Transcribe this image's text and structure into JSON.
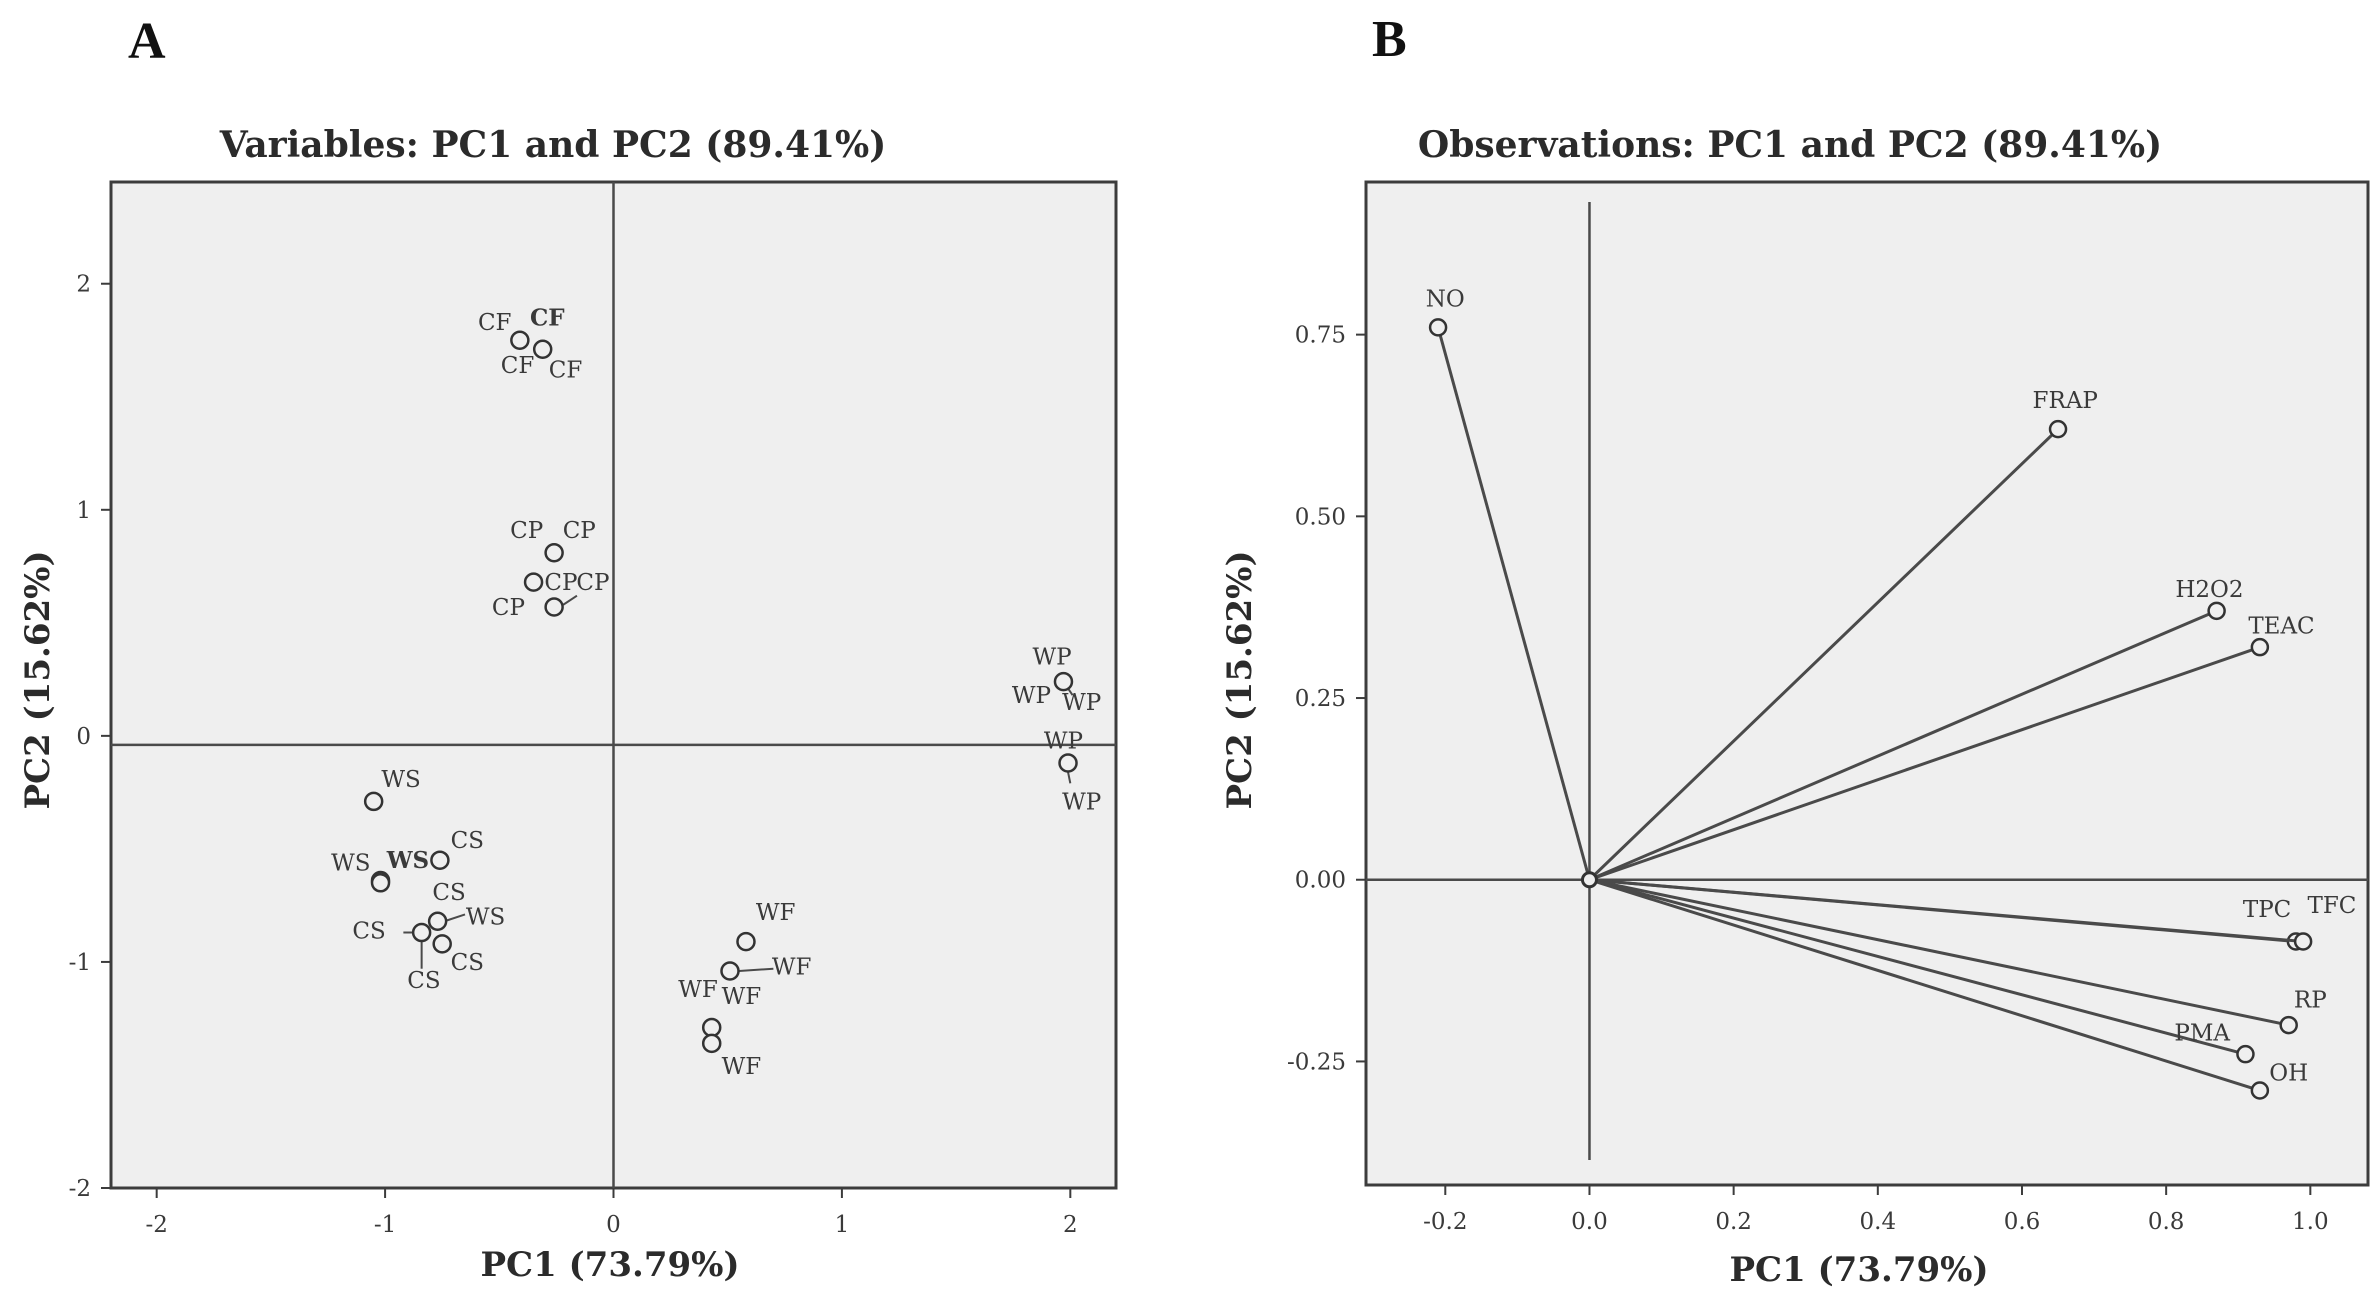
{
  "panels": {
    "a": {
      "letter": "A"
    },
    "b": {
      "letter": "B"
    }
  },
  "colors": {
    "plot_bg": "#efefef",
    "line": "#4a4a4a",
    "text": "#3a3a3a"
  },
  "chart_data": [
    {
      "type": "scatter",
      "title": "Variables: PC1 and PC2 (89.41%)",
      "xlabel": "PC1 (73.79%)",
      "ylabel": "PC2 (15.62%)",
      "xlim": [
        -2.2,
        2.2
      ],
      "ylim": [
        -2,
        2.45
      ],
      "xticks": [
        -2,
        -1,
        0,
        1,
        2
      ],
      "xtick_labels": [
        "-2",
        "-1",
        "0",
        "1",
        "2"
      ],
      "yticks": [
        -2,
        -1,
        0,
        1,
        2
      ],
      "ytick_labels": [
        "-2",
        "-1",
        "0",
        "1",
        "2"
      ],
      "reference_lines": {
        "x": 0,
        "y": -0.04
      },
      "points": [
        {
          "x": -0.41,
          "y": 1.75
        },
        {
          "x": -0.31,
          "y": 1.71
        },
        {
          "x": -0.26,
          "y": 0.81
        },
        {
          "x": -0.35,
          "y": 0.68
        },
        {
          "x": -0.26,
          "y": 0.57
        },
        {
          "x": 1.97,
          "y": 0.24
        },
        {
          "x": 1.99,
          "y": -0.12
        },
        {
          "x": -1.05,
          "y": -0.29
        },
        {
          "x": -0.76,
          "y": -0.55
        },
        {
          "x": -1.02,
          "y": -0.64
        },
        {
          "x": -1.02,
          "y": -0.65
        },
        {
          "x": -0.77,
          "y": -0.82
        },
        {
          "x": -0.84,
          "y": -0.87
        },
        {
          "x": -0.75,
          "y": -0.92
        },
        {
          "x": 0.58,
          "y": -0.91
        },
        {
          "x": 0.51,
          "y": -1.04
        },
        {
          "x": 0.43,
          "y": -1.29
        },
        {
          "x": 0.43,
          "y": -1.36
        }
      ],
      "labels": [
        {
          "text": "CF",
          "x": -0.52,
          "y": 1.83
        },
        {
          "text": "CF",
          "x": -0.29,
          "y": 1.85,
          "bold": true
        },
        {
          "text": "CF",
          "x": -0.42,
          "y": 1.64
        },
        {
          "text": "CF",
          "x": -0.21,
          "y": 1.62
        },
        {
          "text": "CP",
          "x": -0.38,
          "y": 0.91
        },
        {
          "text": "CP",
          "x": -0.15,
          "y": 0.91
        },
        {
          "text": "CP",
          "x": -0.23,
          "y": 0.68
        },
        {
          "text": "CP",
          "x": -0.09,
          "y": 0.68
        },
        {
          "text": "CP",
          "x": -0.46,
          "y": 0.57
        },
        {
          "text": "WP",
          "x": 1.92,
          "y": 0.35
        },
        {
          "text": "WP",
          "x": 1.83,
          "y": 0.18
        },
        {
          "text": "WP",
          "x": 2.05,
          "y": 0.15
        },
        {
          "text": "WP",
          "x": 1.97,
          "y": -0.02
        },
        {
          "text": "WP",
          "x": 2.05,
          "y": -0.29
        },
        {
          "text": "WS",
          "x": -0.93,
          "y": -0.19
        },
        {
          "text": "CS",
          "x": -0.64,
          "y": -0.46
        },
        {
          "text": "WS",
          "x": -1.15,
          "y": -0.56
        },
        {
          "text": "WS",
          "x": -0.9,
          "y": -0.55,
          "bold": true
        },
        {
          "text": "CS",
          "x": -0.72,
          "y": -0.69
        },
        {
          "text": "WS",
          "x": -0.56,
          "y": -0.8
        },
        {
          "text": "CS",
          "x": -1.07,
          "y": -0.86
        },
        {
          "text": "CS",
          "x": -0.64,
          "y": -1.0
        },
        {
          "text": "CS",
          "x": -0.83,
          "y": -1.08
        },
        {
          "text": "WF",
          "x": 0.71,
          "y": -0.78
        },
        {
          "text": "WF",
          "x": 0.78,
          "y": -1.02
        },
        {
          "text": "WF",
          "x": 0.37,
          "y": -1.12
        },
        {
          "text": "WF",
          "x": 0.56,
          "y": -1.15
        },
        {
          "text": "WF",
          "x": 0.56,
          "y": -1.46
        }
      ],
      "connectors": [
        {
          "from": [
            0.55,
            -1.04
          ],
          "to": [
            0.7,
            -1.03
          ]
        },
        {
          "from": [
            -0.81,
            -0.87
          ],
          "to": [
            -0.92,
            -0.87
          ]
        },
        {
          "from": [
            -0.74,
            -0.82
          ],
          "to": [
            -0.65,
            -0.79
          ]
        },
        {
          "from": [
            -0.84,
            -0.9
          ],
          "to": [
            -0.84,
            -1.03
          ]
        },
        {
          "from": [
            -0.22,
            0.58
          ],
          "to": [
            -0.16,
            0.62
          ]
        },
        {
          "from": [
            1.99,
            -0.16
          ],
          "to": [
            2.0,
            -0.21
          ]
        },
        {
          "from": [
            1.99,
            0.21
          ],
          "to": [
            2.01,
            0.18
          ]
        }
      ]
    },
    {
      "type": "scatter",
      "title": "Observations: PC1 and PC2 (89.41%)",
      "xlabel": "PC1 (73.79%)",
      "ylabel": "PC2 (15.62%)",
      "xlim": [
        -0.31,
        1.08
      ],
      "ylim": [
        -0.42,
        0.96
      ],
      "xticks": [
        -0.2,
        0,
        0.2,
        0.4,
        0.6,
        0.8,
        1.0
      ],
      "xtick_labels": [
        "-0.2",
        "0.0",
        "0.2",
        "0.4",
        "0.6",
        "0.8",
        "1.0"
      ],
      "yticks": [
        -0.25,
        0,
        0.25,
        0.5,
        0.75
      ],
      "ytick_labels": [
        "-0.25",
        "0.00",
        "0.25",
        "0.50",
        "0.75"
      ],
      "reference_lines": {
        "x": 0,
        "y": 0
      },
      "vectors": [
        {
          "name": "NO",
          "x": -0.21,
          "y": 0.76
        },
        {
          "name": "FRAP",
          "x": 0.65,
          "y": 0.62
        },
        {
          "name": "H2O2",
          "x": 0.87,
          "y": 0.37
        },
        {
          "name": "TEAC",
          "x": 0.93,
          "y": 0.32
        },
        {
          "name": "TPC",
          "x": 0.98,
          "y": -0.085
        },
        {
          "name": "TFC",
          "x": 0.99,
          "y": -0.085
        },
        {
          "name": "RP",
          "x": 0.97,
          "y": -0.2
        },
        {
          "name": "PMA",
          "x": 0.91,
          "y": -0.24
        },
        {
          "name": "OH",
          "x": 0.93,
          "y": -0.29
        }
      ],
      "labels": [
        {
          "text": "NO",
          "x": -0.2,
          "y": 0.8
        },
        {
          "text": "FRAP",
          "x": 0.66,
          "y": 0.66
        },
        {
          "text": "H2O2",
          "x": 0.86,
          "y": 0.4
        },
        {
          "text": "TEAC",
          "x": 0.96,
          "y": 0.35
        },
        {
          "text": "TPC",
          "x": 0.94,
          "y": -0.04
        },
        {
          "text": "TFC",
          "x": 1.03,
          "y": -0.035
        },
        {
          "text": "RP",
          "x": 1.0,
          "y": -0.165
        },
        {
          "text": "PMA",
          "x": 0.85,
          "y": -0.21
        },
        {
          "text": "OH",
          "x": 0.97,
          "y": -0.265
        }
      ]
    }
  ]
}
